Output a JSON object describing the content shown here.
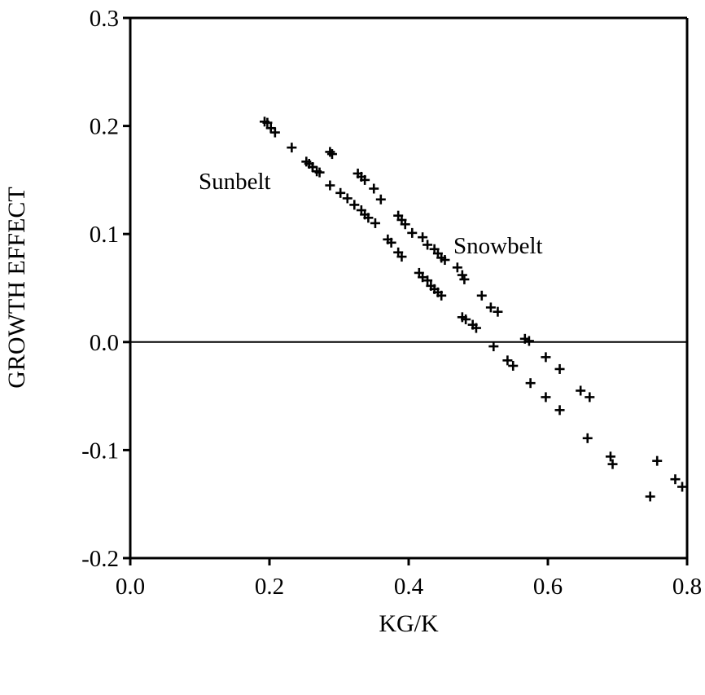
{
  "chart_data": {
    "type": "scatter",
    "title": "",
    "xlabel": "KG/K",
    "ylabel": "GROWTH EFFECT",
    "xlim": [
      0.0,
      0.8
    ],
    "ylim": [
      -0.2,
      0.3
    ],
    "x_ticks": [
      "0.0",
      "0.2",
      "0.4",
      "0.6",
      "0.8"
    ],
    "y_ticks": [
      "-0.2",
      "-0.1",
      "0.0",
      "0.1",
      "0.2",
      "0.3"
    ],
    "x_tick_values": [
      0.0,
      0.2,
      0.4,
      0.6,
      0.8
    ],
    "y_tick_values": [
      -0.2,
      -0.1,
      0.0,
      0.1,
      0.2,
      0.3
    ],
    "reference_line_y": 0.0,
    "grid": false,
    "marker": "plus",
    "annotations": [
      {
        "text": "Sunbelt",
        "x": 0.155,
        "y": 0.146
      },
      {
        "text": "Snowbelt",
        "x": 0.465,
        "y": 0.087
      }
    ],
    "series": [
      {
        "x": [
          0.193,
          0.197,
          0.202,
          0.208,
          0.232,
          0.253,
          0.257,
          0.262,
          0.268,
          0.287,
          0.29,
          0.327,
          0.332,
          0.337,
          0.35,
          0.36,
          0.385,
          0.39,
          0.395,
          0.405,
          0.42,
          0.427,
          0.437,
          0.442,
          0.447,
          0.452,
          0.47,
          0.477,
          0.48,
          0.505,
          0.518,
          0.528,
          0.567,
          0.573,
          0.597,
          0.617,
          0.647,
          0.66,
          0.69,
          0.757,
          0.783,
          0.793
        ],
        "y": [
          0.204,
          0.203,
          0.198,
          0.194,
          0.18,
          0.167,
          0.165,
          0.162,
          0.158,
          0.176,
          0.174,
          0.156,
          0.153,
          0.15,
          0.142,
          0.132,
          0.117,
          0.113,
          0.109,
          0.101,
          0.097,
          0.09,
          0.086,
          0.082,
          0.078,
          0.076,
          0.069,
          0.062,
          0.058,
          0.043,
          0.032,
          0.028,
          0.003,
          0.001,
          -0.014,
          -0.025,
          -0.045,
          -0.051,
          -0.106,
          -0.11,
          -0.127,
          -0.134
        ]
      },
      {
        "x": [
          0.262,
          0.272,
          0.287,
          0.302,
          0.312,
          0.322,
          0.332,
          0.337,
          0.342,
          0.352,
          0.37,
          0.375,
          0.385,
          0.39,
          0.415,
          0.42,
          0.427,
          0.432,
          0.437,
          0.442,
          0.447,
          0.477,
          0.482,
          0.492,
          0.497,
          0.522,
          0.542,
          0.55,
          0.575,
          0.597,
          0.617,
          0.657,
          0.693,
          0.747
        ],
        "y": [
          0.162,
          0.157,
          0.145,
          0.138,
          0.133,
          0.127,
          0.122,
          0.118,
          0.115,
          0.11,
          0.095,
          0.092,
          0.083,
          0.079,
          0.064,
          0.06,
          0.057,
          0.052,
          0.049,
          0.046,
          0.043,
          0.023,
          0.021,
          0.016,
          0.013,
          -0.004,
          -0.017,
          -0.022,
          -0.038,
          -0.051,
          -0.063,
          -0.089,
          -0.113,
          -0.143
        ]
      }
    ]
  }
}
